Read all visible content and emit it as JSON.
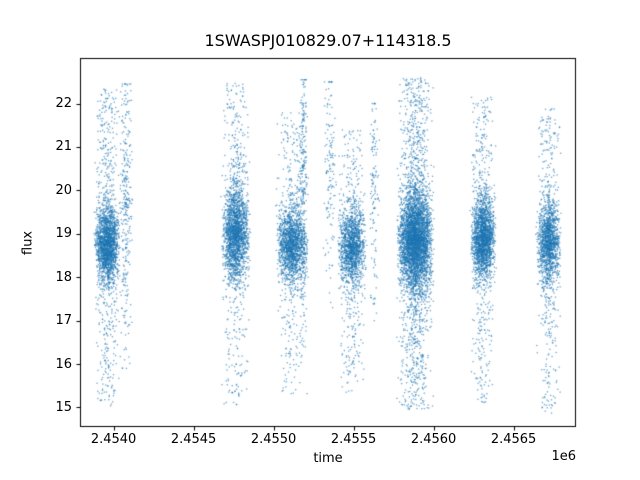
{
  "chart_data": {
    "type": "scatter",
    "title": "1SWASPJ010829.07+114318.5",
    "xlabel": "time",
    "ylabel": "flux",
    "x_offset_label": "1e6",
    "marker_color": "#1f77b4",
    "marker_alpha": 0.65,
    "grid": false,
    "legend": null,
    "xlim": [
      2453790,
      2456890
    ],
    "ylim": [
      14.55,
      23.05
    ],
    "xticks": {
      "values": [
        2454000,
        2454500,
        2455000,
        2455500,
        2456000,
        2456500
      ],
      "labels": [
        "2.4540",
        "2.4545",
        "2.4550",
        "2.4555",
        "2.4560",
        "2.4565"
      ]
    },
    "yticks": {
      "values": [
        15,
        16,
        17,
        18,
        19,
        20,
        21,
        22
      ],
      "labels": [
        "15",
        "16",
        "17",
        "18",
        "19",
        "20",
        "21",
        "22"
      ]
    },
    "clusters": [
      {
        "t": 2453960,
        "hw": 80,
        "n": 2300,
        "mu": 18.75,
        "sigma": 0.42,
        "lo": 15.0,
        "hi": 22.35,
        "tail_frac": 0.3,
        "up_frac": 0.55
      },
      {
        "t": 2454075,
        "hw": 45,
        "n": 320,
        "mu": 19.6,
        "sigma": 1.5,
        "lo": 15.9,
        "hi": 22.45,
        "tail_frac": 0.5,
        "up_frac": 0.6
      },
      {
        "t": 2454765,
        "hw": 90,
        "n": 2300,
        "mu": 19.0,
        "sigma": 0.52,
        "lo": 15.05,
        "hi": 22.5,
        "tail_frac": 0.28,
        "up_frac": 0.55
      },
      {
        "t": 2455115,
        "hw": 100,
        "n": 1900,
        "mu": 18.75,
        "sigma": 0.42,
        "lo": 15.3,
        "hi": 21.8,
        "tail_frac": 0.25,
        "up_frac": 0.5
      },
      {
        "t": 2455185,
        "hw": 30,
        "n": 260,
        "mu": 20.0,
        "sigma": 1.6,
        "lo": 16.0,
        "hi": 22.55,
        "tail_frac": 0.45,
        "up_frac": 0.65
      },
      {
        "t": 2455350,
        "hw": 40,
        "n": 140,
        "mu": 20.5,
        "sigma": 1.3,
        "lo": 17.3,
        "hi": 22.5,
        "tail_frac": 0.4,
        "up_frac": 0.6
      },
      {
        "t": 2455490,
        "hw": 90,
        "n": 1700,
        "mu": 18.7,
        "sigma": 0.45,
        "lo": 15.35,
        "hi": 21.4,
        "tail_frac": 0.25,
        "up_frac": 0.5
      },
      {
        "t": 2455630,
        "hw": 30,
        "n": 130,
        "mu": 19.8,
        "sigma": 1.4,
        "lo": 17.0,
        "hi": 22.0,
        "tail_frac": 0.4,
        "up_frac": 0.6
      },
      {
        "t": 2455885,
        "hw": 115,
        "n": 4800,
        "mu": 18.85,
        "sigma": 0.58,
        "lo": 14.95,
        "hi": 22.6,
        "tail_frac": 0.33,
        "up_frac": 0.5
      },
      {
        "t": 2456310,
        "hw": 80,
        "n": 2300,
        "mu": 18.9,
        "sigma": 0.45,
        "lo": 15.1,
        "hi": 22.15,
        "tail_frac": 0.26,
        "up_frac": 0.55
      },
      {
        "t": 2456720,
        "hw": 78,
        "n": 1700,
        "mu": 18.8,
        "sigma": 0.45,
        "lo": 14.85,
        "hi": 21.9,
        "tail_frac": 0.26,
        "up_frac": 0.5
      }
    ]
  }
}
